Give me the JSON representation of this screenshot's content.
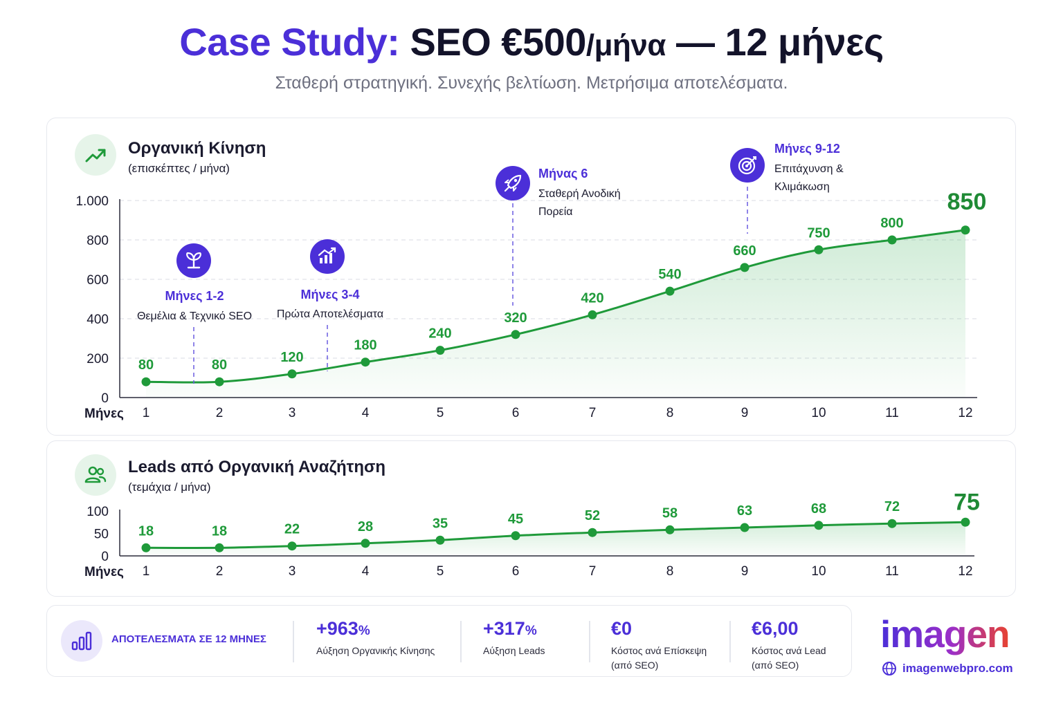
{
  "header": {
    "title_part1": "Case Study:",
    "title_part2": "SEO €500",
    "title_part3": "/μήνα",
    "title_part4": " — 12 μήνες",
    "subtitle": "Σταθερή στρατηγική. Συνεχής βελτίωση. Μετρήσιμα αποτελέσματα."
  },
  "traffic_panel": {
    "title": "Οργανική Κίνηση",
    "unit": "(επισκέπτες / μήνα)",
    "icon": "trend-up-icon",
    "milestones": [
      {
        "icon": "sprout-icon",
        "title": "Μήνες 1-2",
        "desc": [
          "Θεμέλια & Τεχνικό SEO"
        ],
        "x": 1.65
      },
      {
        "icon": "growth-chart-icon",
        "title": "Μήνες 3-4",
        "desc": [
          "Πρώτα Αποτελέσματα"
        ],
        "x": 3.5
      },
      {
        "icon": "rocket-icon",
        "title": "Μήνας 6",
        "desc": [
          "Σταθερή Ανοδική",
          "Πορεία"
        ],
        "x": 6
      },
      {
        "icon": "target-icon",
        "title": "Μήνες 9-12",
        "desc": [
          "Επιτάχυνση &",
          "Κλιμάκωση"
        ],
        "x": 9
      }
    ]
  },
  "leads_panel": {
    "title": "Leads από Οργανική Αναζήτηση",
    "unit": "(τεμάχια / μήνα)",
    "icon": "users-icon"
  },
  "chart_data": [
    {
      "type": "area",
      "title": "Οργανική Κίνηση",
      "subtitle": "(επισκέπτες / μήνα)",
      "xlabel": "Μήνες",
      "x": [
        1,
        2,
        3,
        4,
        5,
        6,
        7,
        8,
        9,
        10,
        11,
        12
      ],
      "x_tick_labels": [
        "1",
        "2",
        "3",
        "4",
        "5",
        "6",
        "7",
        "8",
        "9",
        "10",
        "11",
        "12"
      ],
      "values": [
        80,
        80,
        120,
        180,
        240,
        320,
        420,
        540,
        660,
        750,
        800,
        850
      ],
      "data_labels": [
        "80",
        "80",
        "120",
        "180",
        "240",
        "320",
        "420",
        "540",
        "660",
        "750",
        "800",
        "850"
      ],
      "y_ticks": [
        0,
        200,
        400,
        600,
        800,
        1000
      ],
      "y_tick_labels": [
        "0",
        "200",
        "400",
        "600",
        "800",
        "1.000"
      ],
      "ylim": [
        0,
        1000
      ],
      "grid": "dashed horizontal",
      "color": "#1f9a3a"
    },
    {
      "type": "area",
      "title": "Leads από Οργανική Αναζήτηση",
      "subtitle": "(τεμάχια / μήνα)",
      "xlabel": "Μήνες",
      "x": [
        1,
        2,
        3,
        4,
        5,
        6,
        7,
        8,
        9,
        10,
        11,
        12
      ],
      "x_tick_labels": [
        "1",
        "2",
        "3",
        "4",
        "5",
        "6",
        "7",
        "8",
        "9",
        "10",
        "11",
        "12"
      ],
      "values": [
        18,
        18,
        22,
        28,
        35,
        45,
        52,
        58,
        63,
        68,
        72,
        75
      ],
      "data_labels": [
        "18",
        "18",
        "22",
        "28",
        "35",
        "45",
        "52",
        "58",
        "63",
        "68",
        "72",
        "75"
      ],
      "y_ticks": [
        0,
        50,
        100
      ],
      "y_tick_labels": [
        "0",
        "50",
        "100"
      ],
      "ylim": [
        0,
        100
      ],
      "grid": "none",
      "color": "#1f9a3a"
    }
  ],
  "summary": {
    "title": "ΑΠΟΤΕΛΕΣΜΑΤΑ ΣΕ 12 ΜΗΝΕΣ",
    "icon": "bar-chart-icon",
    "stats": [
      {
        "value": "+963",
        "suffix": "%",
        "label": [
          "Αύξηση Οργανικής Κίνησης"
        ]
      },
      {
        "value": "+317",
        "suffix": "%",
        "label": [
          "Αύξηση Leads"
        ]
      },
      {
        "value": "€0",
        "suffix": "",
        "label": [
          "Κόστος ανά Επίσκεψη",
          "(από SEO)"
        ]
      },
      {
        "value": "€6,00",
        "suffix": "",
        "label": [
          "Κόστος ανά Lead",
          "(από SEO)"
        ]
      }
    ]
  },
  "brand": {
    "logo_text": "imagen",
    "url": "imagenwebpro.com",
    "colors": {
      "primary": "#4b2fd8",
      "accent": "#e8432f"
    }
  }
}
